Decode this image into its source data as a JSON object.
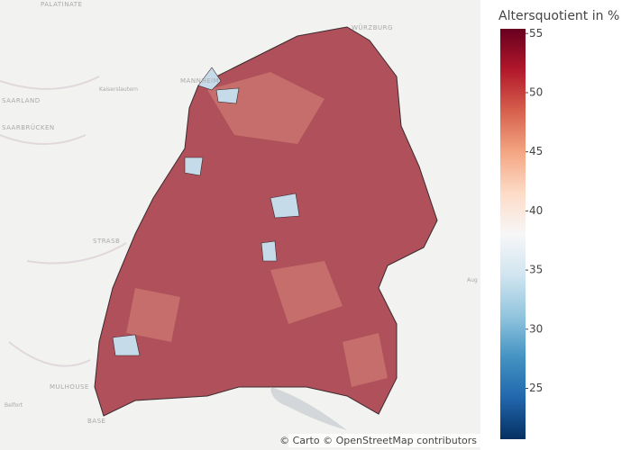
{
  "map": {
    "labels": [
      "PALATINATE",
      "WÜRZBURG",
      "SAARLAND",
      "Kaiserslautern",
      "MANNHEIM",
      "SAARBRÜCKEN",
      "STRASB",
      "MULHOUSE",
      "Belfort",
      "BASE",
      "Aug"
    ],
    "attribution": "© Carto © OpenStreetMap contributors"
  },
  "colorbar": {
    "title": "Altersquotient in %",
    "range": [
      20.7,
      55.4
    ],
    "ticks": [
      25,
      30,
      35,
      40,
      45,
      50,
      55
    ],
    "colorscale": [
      "#053061",
      "#2166ac",
      "#4393c3",
      "#92c5de",
      "#d1e5f0",
      "#f7f7f7",
      "#fddbc7",
      "#f4a582",
      "#d6604d",
      "#b2182b",
      "#67001f"
    ]
  }
}
